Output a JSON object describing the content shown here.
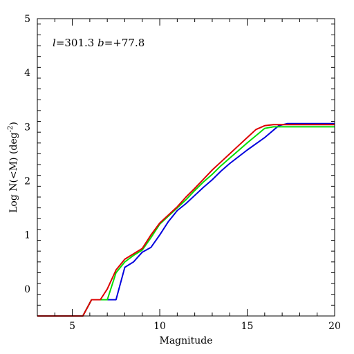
{
  "chart_data": {
    "type": "line",
    "title": "",
    "annotation": {
      "l_symbol": "l",
      "l_value": "=301.3",
      "b_symbol": "b",
      "b_value": "=+77.8"
    },
    "xlabel": "Magnitude",
    "ylabel_prefix": "Log N(<M) (deg",
    "ylabel_sup": "-2",
    "ylabel_suffix": ")",
    "xlim": [
      3,
      20
    ],
    "ylim": [
      -0.5,
      5
    ],
    "xticks_major": [
      5,
      10,
      15,
      20
    ],
    "xticks_minor_step": 1,
    "yticks_major": [
      0,
      1,
      2,
      3,
      4,
      5
    ],
    "yticks_minor_step": 0.2,
    "grid": false,
    "series": [
      {
        "color": "#0000dd",
        "x": [
          3,
          5.6,
          6.1,
          7.5,
          8.0,
          8.5,
          9.0,
          9.5,
          10.0,
          10.5,
          11.0,
          11.5,
          12.0,
          12.5,
          13.0,
          13.5,
          14.0,
          15.0,
          16.0,
          16.8,
          17.3,
          20
        ],
        "y": [
          -0.5,
          -0.5,
          -0.2,
          -0.2,
          0.4,
          0.5,
          0.68,
          0.77,
          1.0,
          1.25,
          1.45,
          1.58,
          1.73,
          1.88,
          2.02,
          2.18,
          2.32,
          2.57,
          2.8,
          3.02,
          3.06,
          3.06
        ]
      },
      {
        "color": "#00dd00",
        "x": [
          3,
          5.6,
          6.1,
          7.0,
          7.5,
          8.0,
          8.5,
          9.0,
          9.5,
          10.0,
          10.5,
          11.0,
          11.5,
          12.0,
          12.5,
          13.0,
          13.5,
          14.0,
          15.0,
          16.0,
          16.5,
          20
        ],
        "y": [
          -0.5,
          -0.5,
          -0.2,
          -0.2,
          0.3,
          0.5,
          0.62,
          0.72,
          0.95,
          1.2,
          1.35,
          1.5,
          1.65,
          1.82,
          1.98,
          2.12,
          2.28,
          2.42,
          2.7,
          2.97,
          3.0,
          3.0
        ]
      },
      {
        "color": "#dd0000",
        "x": [
          3,
          5.6,
          6.1,
          6.6,
          7.0,
          7.5,
          8.0,
          8.5,
          9.0,
          9.5,
          10.0,
          10.5,
          11.0,
          11.5,
          12.0,
          12.5,
          13.0,
          13.5,
          14.0,
          14.5,
          15.0,
          15.5,
          16.0,
          16.5,
          20
        ],
        "y": [
          -0.5,
          -0.5,
          -0.2,
          -0.2,
          0.0,
          0.35,
          0.55,
          0.65,
          0.75,
          1.0,
          1.22,
          1.37,
          1.52,
          1.7,
          1.86,
          2.03,
          2.2,
          2.35,
          2.5,
          2.65,
          2.8,
          2.95,
          3.02,
          3.04,
          3.04
        ]
      }
    ]
  }
}
